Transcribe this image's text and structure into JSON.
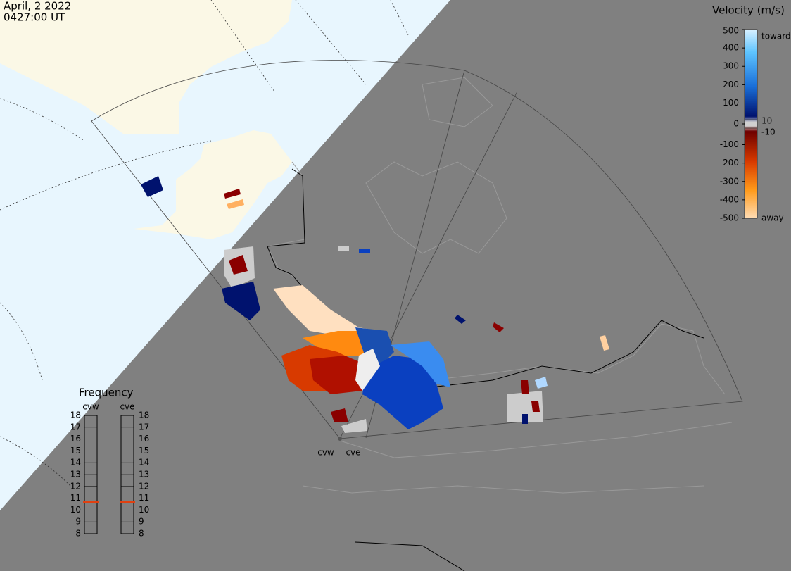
{
  "header": {
    "date": "April, 2 2022",
    "time": "0427:00 UT"
  },
  "velocity_scale": {
    "title": "Velocity (m/s)",
    "lim": [
      -500,
      500
    ],
    "ticks": [
      500,
      400,
      300,
      200,
      100,
      0,
      -100,
      -200,
      -300,
      -400,
      -500
    ],
    "inner_ticks": [
      10,
      -10
    ],
    "toward": "toward",
    "away": "away"
  },
  "frequency": {
    "title": "Frequency",
    "lim": [
      8,
      18
    ],
    "ticks": [
      18,
      17,
      16,
      15,
      14,
      13,
      12,
      11,
      10,
      9,
      8
    ],
    "radars": [
      {
        "name": "cvw",
        "value": 10.7
      },
      {
        "name": "cve",
        "value": 10.7
      }
    ]
  }
}
